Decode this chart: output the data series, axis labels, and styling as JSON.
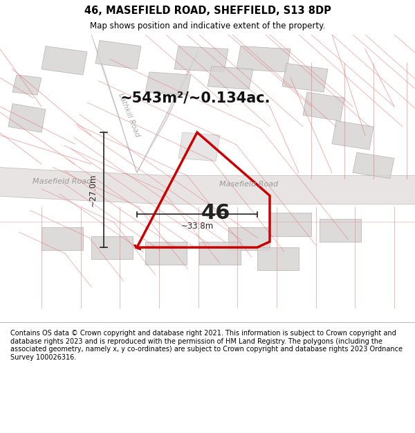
{
  "title_line1": "46, MASEFIELD ROAD, SHEFFIELD, S13 8DP",
  "title_line2": "Map shows position and indicative extent of the property.",
  "footer_text": "Contains OS data © Crown copyright and database right 2021. This information is subject to Crown copyright and database rights 2023 and is reproduced with the permission of HM Land Registry. The polygons (including the associated geometry, namely x, y co-ordinates) are subject to Crown copyright and database rights 2023 Ordnance Survey 100026316.",
  "area_label": "~543m²/~0.134ac.",
  "property_number": "46",
  "width_label": "~33.8m",
  "height_label": "~27.0m",
  "road_label_masefield_left": "Masefield Road",
  "road_label_masefield_right": "Masefield Road",
  "road_label_lathkill": "Lathkill Road",
  "bg_color": "#ffffff",
  "map_bg": "#f9f6f6",
  "building_fill": "#d8d4d4",
  "building_edge": "#b8b0b0",
  "road_fill": "#e8e4e4",
  "property_color": "#cc0000",
  "property_lw": 2.5,
  "dim_color": "#222222",
  "grid_line_color": "#e08080",
  "grid_line_alpha": 0.55,
  "grid_line_lw": 0.8
}
